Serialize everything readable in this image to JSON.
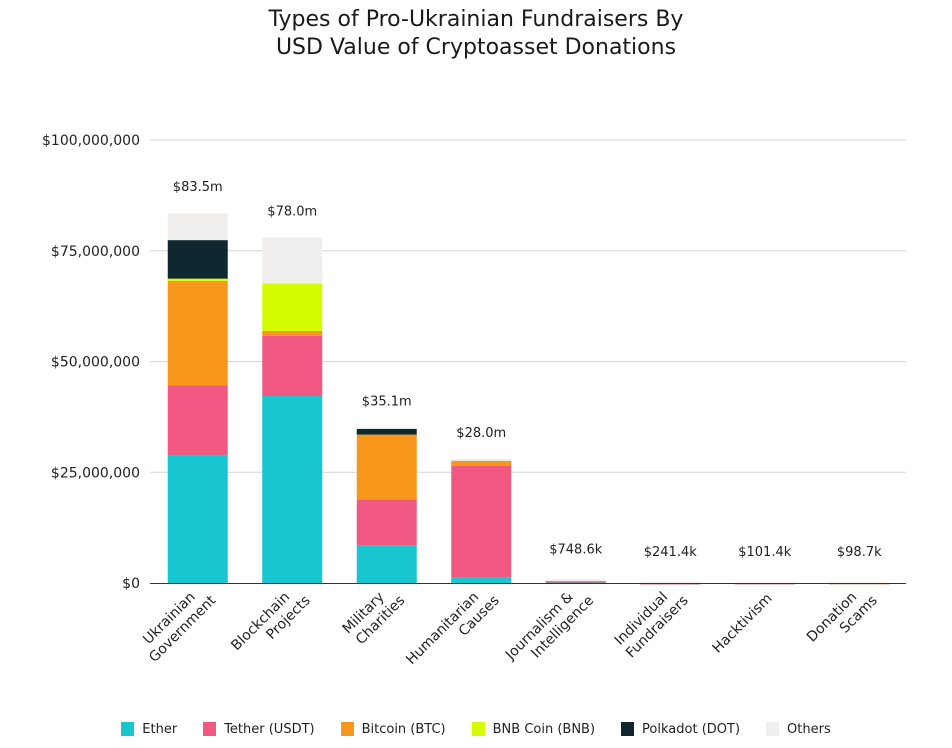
{
  "chart_data": {
    "type": "bar",
    "stacked": true,
    "title": [
      "Types of Pro-Ukrainian Fundraisers By",
      "USD Value of Cryptoasset Donations"
    ],
    "xlabel": "",
    "ylabel": "",
    "ylim": [
      0,
      100000000
    ],
    "yticks": [
      0,
      25000000,
      50000000,
      75000000,
      100000000
    ],
    "ytick_labels": [
      "$0",
      "$25,000,000",
      "$50,000,000",
      "$75,000,000",
      "$100,000,000"
    ],
    "grid": true,
    "legend_position": "bottom",
    "categories": [
      [
        "Ukrainian",
        "Government"
      ],
      [
        "Blockchain",
        "Projects"
      ],
      [
        "Military",
        "Charities"
      ],
      [
        "Humanitarian",
        "Causes"
      ],
      [
        "Journalism &",
        "Intelligence"
      ],
      [
        "Individual",
        "Fundraisers"
      ],
      [
        "Hacktivism"
      ],
      [
        "Donation",
        "Scams"
      ]
    ],
    "totals": [
      83500000,
      78000000,
      35100000,
      28000000,
      748600,
      241400,
      101400,
      98700
    ],
    "total_labels": [
      "$83.5m",
      "$78.0m",
      "$35.1m",
      "$28.0m",
      "$748.6k",
      "$241.4k",
      "$101.4k",
      "$98.7k"
    ],
    "series": [
      {
        "name": "Ether",
        "color": "#17c6cf",
        "values": [
          28700000,
          42200000,
          8500000,
          1200000,
          400000,
          20000,
          30000,
          30000
        ]
      },
      {
        "name": "Tether (USDT)",
        "color": "#f15882",
        "values": [
          15900000,
          13600000,
          10400000,
          25300000,
          20000,
          10000,
          20000,
          20000
        ]
      },
      {
        "name": "Bitcoin (BTC)",
        "color": "#f7971c",
        "values": [
          23600000,
          1100000,
          14600000,
          1100000,
          300000,
          200000,
          40000,
          40000
        ]
      },
      {
        "name": "BNB Coin (BNB)",
        "color": "#d4fb00",
        "values": [
          500000,
          10700000,
          0,
          0,
          0,
          0,
          0,
          0
        ]
      },
      {
        "name": "Polkadot (DOT)",
        "color": "#0f2830",
        "values": [
          8700000,
          0,
          1300000,
          0,
          0,
          0,
          0,
          0
        ]
      },
      {
        "name": "Others",
        "color": "#f0efee",
        "values": [
          6100000,
          10400000,
          300000,
          400000,
          28600,
          11400,
          11400,
          8700
        ]
      }
    ]
  }
}
